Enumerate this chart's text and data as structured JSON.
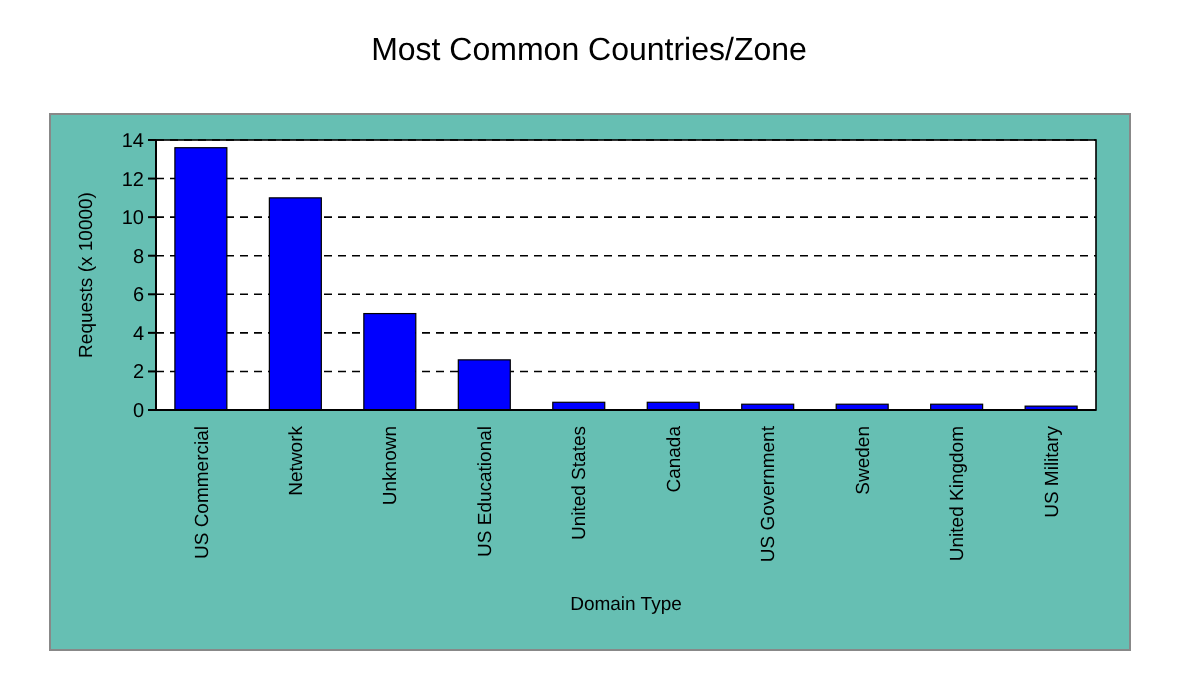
{
  "chart_data": {
    "type": "bar",
    "title": "Most Common Countries/Zone",
    "xlabel": "Domain Type",
    "ylabel": "Requests (x 10000)",
    "categories": [
      "US Commercial",
      "Network",
      "Unknown",
      "US Educational",
      "United States",
      "Canada",
      "US Government",
      "Sweden",
      "United Kingdom",
      "US Military"
    ],
    "values": [
      13.6,
      11.0,
      5.0,
      2.6,
      0.4,
      0.4,
      0.3,
      0.3,
      0.3,
      0.2
    ],
    "color": "#0000ff",
    "ylim": [
      0,
      14
    ],
    "yticks": [
      0,
      2,
      4,
      6,
      8,
      10,
      12,
      14
    ],
    "grid": "y"
  }
}
